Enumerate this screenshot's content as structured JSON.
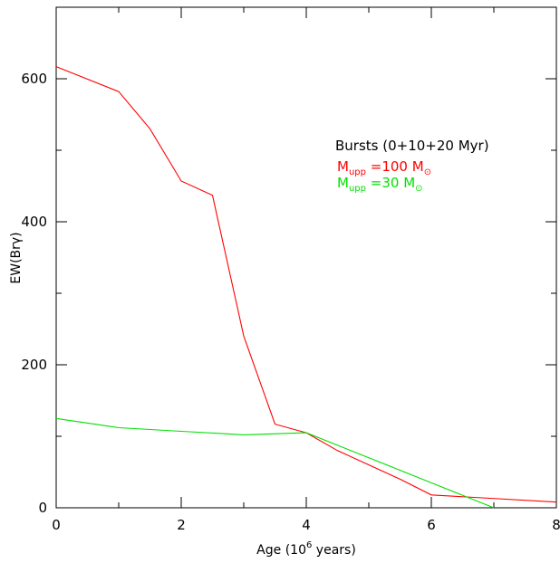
{
  "chart_data": {
    "type": "line",
    "xlabel": "Age (10",
    "xlabel_sup": "6",
    "xlabel_tail": " years)",
    "ylabel": "EW(Brγ)",
    "xlim": [
      0,
      8
    ],
    "ylim": [
      0,
      700
    ],
    "x_ticks": [
      0,
      2,
      4,
      6,
      8
    ],
    "y_ticks": [
      0,
      200,
      400,
      600
    ],
    "x_minor_ticks": [
      1,
      3,
      5,
      7
    ],
    "y_minor_ticks": [
      100,
      300,
      500
    ],
    "grid": false,
    "legend": {
      "title": "Bursts (0+10+20 Myr)",
      "position": "top-right",
      "entries": [
        {
          "prefix": "M",
          "sub": "upp",
          "text": " =100 M",
          "sun": "⊙",
          "color": "#ff0000"
        },
        {
          "prefix": "M",
          "sub": "upp",
          "text": " =30 M",
          "sun": "⊙",
          "color": "#00e000"
        }
      ]
    },
    "series": [
      {
        "color": "#ff0000",
        "x": [
          0,
          1,
          1.5,
          2,
          2.5,
          3,
          3.5,
          4,
          4.5,
          5.5,
          6,
          8
        ],
        "y": [
          617,
          582,
          530,
          457,
          437,
          240,
          117,
          105,
          80,
          40,
          18,
          8
        ]
      },
      {
        "color": "#00e000",
        "x": [
          0,
          1,
          2,
          3,
          4,
          5,
          6,
          7
        ],
        "y": [
          125,
          112,
          107,
          102,
          105,
          70,
          35,
          0
        ]
      }
    ]
  }
}
